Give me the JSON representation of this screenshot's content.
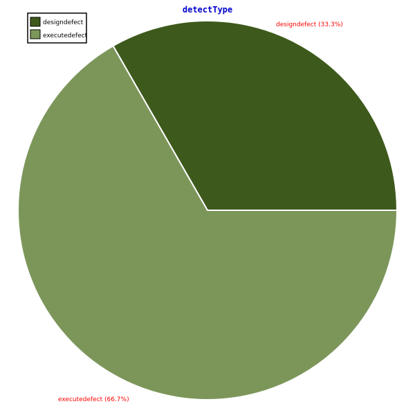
{
  "chart_data": {
    "type": "pie",
    "title": "detectType",
    "slices": [
      {
        "label": "designdefect",
        "value": 33.3,
        "display": "designdefect  (33.3%)",
        "color": "#3d5a1c"
      },
      {
        "label": "executedefect",
        "value": 66.7,
        "display": "executedefect (66.7%)",
        "color": "#7c965a"
      }
    ],
    "legend": {
      "placement": "top-left",
      "entries": [
        "designdefect",
        "executedefect"
      ]
    },
    "start_angle_deg": 0,
    "direction": "counterclockwise"
  },
  "colors": {
    "title": "#0000cc",
    "slice_label": "#ff0000",
    "slice_border": "#ffffff",
    "legend_border": "#000000"
  }
}
